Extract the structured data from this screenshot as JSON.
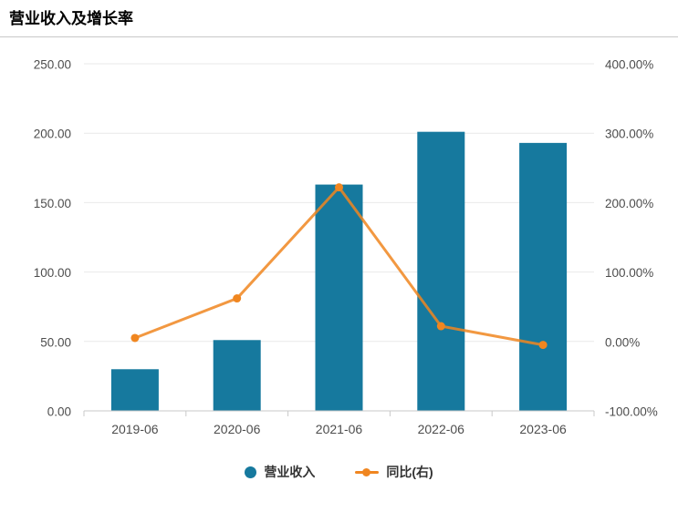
{
  "page": {
    "title": "营业收入及增长率"
  },
  "chart_data": {
    "type": "bar",
    "title": "营业收入及增长率",
    "categories": [
      "2019-06",
      "2020-06",
      "2021-06",
      "2022-06",
      "2023-06"
    ],
    "series": [
      {
        "name": "营业收入",
        "chart": "bar",
        "axis": "left",
        "color": "#16799E",
        "values": [
          30,
          51,
          163,
          201,
          193
        ]
      },
      {
        "name": "同比(右)",
        "chart": "line",
        "axis": "right",
        "color": "#F08620",
        "values": [
          5,
          62,
          222,
          22,
          -5
        ]
      }
    ],
    "left_axis": {
      "min": 0,
      "max": 250,
      "step": 50,
      "labels": [
        "0.00",
        "50.00",
        "100.00",
        "150.00",
        "200.00",
        "250.00"
      ]
    },
    "right_axis": {
      "min": -100,
      "max": 400,
      "step": 100,
      "labels": [
        "-100.00%",
        "0.00%",
        "100.00%",
        "200.00%",
        "300.00%",
        "400.00%"
      ]
    },
    "grid": true,
    "legend_position": "bottom"
  },
  "legend": {
    "items": [
      {
        "label": "营业收入",
        "marker": "circle",
        "color": "#16799E"
      },
      {
        "label": "同比(右)",
        "marker": "line-dot",
        "color": "#F08620"
      }
    ]
  },
  "colors": {
    "bar": "#16799E",
    "line": "#F08620",
    "gridline": "#e9e9e9",
    "axis": "#c9c9c9",
    "tick_label": "#4d4d4d",
    "legend_text": "#333333"
  }
}
